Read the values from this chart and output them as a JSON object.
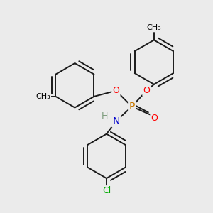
{
  "bg_color": "#ebebeb",
  "atom_colors": {
    "P": "#c87800",
    "O": "#ff0000",
    "N": "#0000cc",
    "Cl": "#00aa00",
    "H": "#7a9a7a",
    "C": "#000000"
  },
  "bond_color": "#1a1a1a",
  "bond_width": 1.4,
  "figsize": [
    3.0,
    3.0
  ],
  "dpi": 100,
  "xlim": [
    0,
    10
  ],
  "ylim": [
    0,
    10
  ]
}
